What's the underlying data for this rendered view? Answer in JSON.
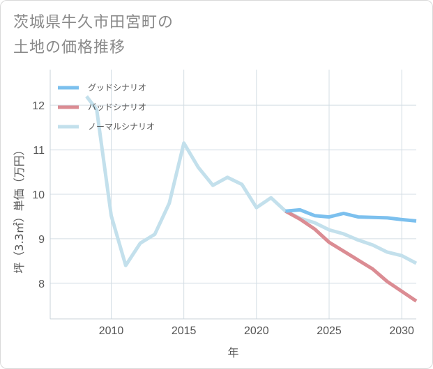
{
  "title": {
    "line1": "茨城県牛久市田宮町の",
    "line2": "土地の価格推移"
  },
  "chart_data": {
    "type": "line",
    "xlabel": "年",
    "ylabel": "坪（3.3㎡）単価（万円）",
    "xlim": [
      2005.8,
      2031
    ],
    "ylim": [
      7.2,
      12.8
    ],
    "x_ticks": [
      "2010",
      "2015",
      "2020",
      "2025",
      "2030"
    ],
    "y_ticks": [
      "8",
      "9",
      "10",
      "11",
      "12"
    ],
    "grid": true,
    "legend_position": "top-left",
    "series": [
      {
        "name": "グッドシナリオ",
        "color": "#7cc0ee",
        "x": [
          2022,
          2023,
          2024,
          2025,
          2026,
          2027,
          2028,
          2029,
          2030,
          2031
        ],
        "values": [
          9.62,
          9.65,
          9.52,
          9.49,
          9.57,
          9.49,
          9.48,
          9.47,
          9.43,
          9.4
        ]
      },
      {
        "name": "バッドシナリオ",
        "color": "#db8c93",
        "x": [
          2022,
          2023,
          2024,
          2025,
          2026,
          2027,
          2028,
          2029,
          2030,
          2031
        ],
        "values": [
          9.62,
          9.44,
          9.22,
          8.92,
          8.72,
          8.52,
          8.32,
          8.04,
          7.82,
          7.6
        ]
      },
      {
        "name": "ノーマルシナリオ",
        "color": "#c3e0ec",
        "x": [
          2008.3,
          2009,
          2010,
          2011,
          2012,
          2013,
          2014,
          2015,
          2016,
          2017,
          2018,
          2019,
          2020,
          2021,
          2022,
          2023,
          2024,
          2025,
          2026,
          2027,
          2028,
          2029,
          2030,
          2031
        ],
        "values": [
          12.2,
          11.9,
          9.52,
          8.4,
          8.9,
          9.1,
          9.8,
          11.15,
          10.6,
          10.2,
          10.38,
          10.22,
          9.7,
          9.92,
          9.62,
          9.46,
          9.36,
          9.2,
          9.11,
          8.97,
          8.86,
          8.7,
          8.62,
          8.45
        ]
      }
    ]
  }
}
